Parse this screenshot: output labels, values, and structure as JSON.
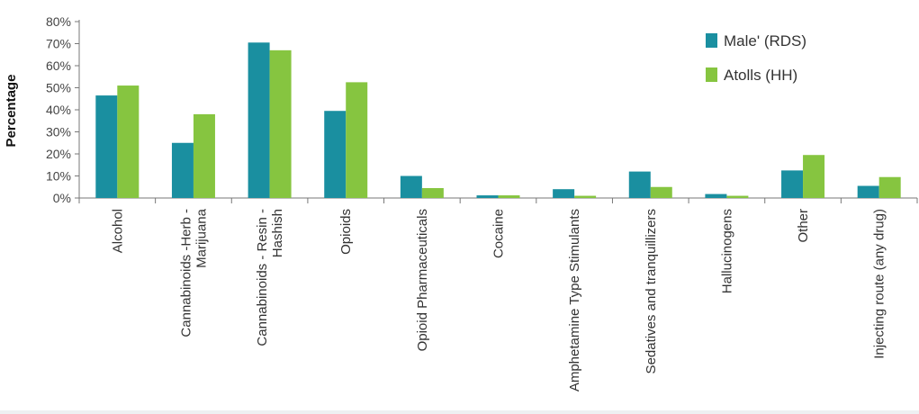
{
  "chart_data": {
    "type": "bar",
    "title": "",
    "xlabel": "",
    "ylabel": "Percentage",
    "ylim": [
      0,
      80
    ],
    "yticks": [
      "0%",
      "10%",
      "20%",
      "30%",
      "40%",
      "50%",
      "60%",
      "70%",
      "80%"
    ],
    "categories": [
      [
        "Alcohol"
      ],
      [
        "Cannabinoids -Herb -",
        "Marijuana"
      ],
      [
        "Cannabinoids - Resin -",
        "Hashish"
      ],
      [
        "Opioids"
      ],
      [
        "Opioid Pharmaceuticals"
      ],
      [
        "Cocaine"
      ],
      [
        "Amphetamine Type Stimulants"
      ],
      [
        "Sedatives and tranquillizers"
      ],
      [
        "Hallucinogens"
      ],
      [
        "Other"
      ],
      [
        "Injecting route (any drug)"
      ]
    ],
    "series": [
      {
        "name": "Male' (RDS)",
        "color": "#1a8fa0",
        "values": [
          46.5,
          25,
          70.5,
          39.5,
          10,
          1.2,
          4,
          12,
          1.8,
          12.5,
          5.5
        ]
      },
      {
        "name": "Atolls (HH)",
        "color": "#86c540",
        "values": [
          51,
          38,
          67,
          52.5,
          4.5,
          1.2,
          1,
          5,
          1,
          19.5,
          9.5
        ]
      }
    ],
    "grid": false,
    "legend": "top-right"
  }
}
